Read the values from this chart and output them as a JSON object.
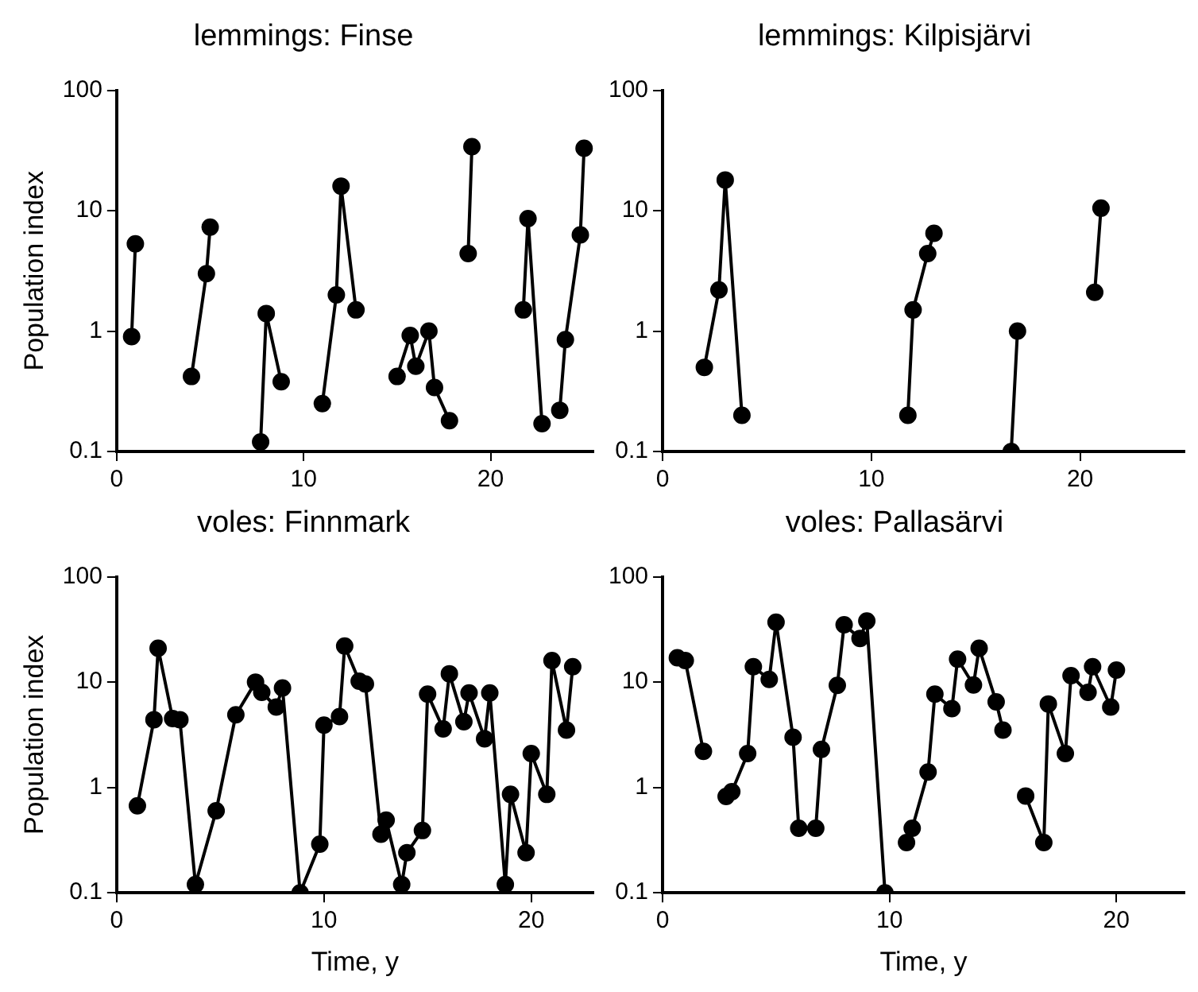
{
  "chart_data": [
    {
      "type": "line",
      "title": "lemmings: Finse",
      "ylabel": "Population index",
      "log": "y",
      "marker": "circle",
      "color": "#000000",
      "xlim": [
        0,
        25.5
      ],
      "xticks": [
        0,
        10,
        20
      ],
      "ylim": [
        0.1,
        100
      ],
      "yticks": [
        0.1,
        1,
        10,
        100
      ],
      "x": [
        0.8,
        1.0,
        1.5,
        4.0,
        4.8,
        5.0,
        5.5,
        7.7,
        8.0,
        8.8,
        8.9,
        11.0,
        11.75,
        12.0,
        12.8,
        12.95,
        15.0,
        15.7,
        16.0,
        16.7,
        17.0,
        17.8,
        18.0,
        18.8,
        19.0,
        19.6,
        21.75,
        22.0,
        22.75,
        23.2,
        23.7,
        24.0,
        24.8,
        25.0
      ],
      "values": [
        0.9,
        5.3,
        null,
        0.42,
        3.0,
        7.3,
        null,
        0.12,
        1.4,
        0.38,
        null,
        0.25,
        2.0,
        16,
        1.5,
        null,
        0.42,
        0.92,
        0.51,
        1.0,
        0.34,
        0.18,
        null,
        4.4,
        34,
        null,
        1.5,
        8.6,
        0.17,
        null,
        0.22,
        0.85,
        6.3,
        33
      ]
    },
    {
      "type": "line",
      "title": "lemmings: Kilpisjärvi",
      "log": "y",
      "marker": "circle",
      "color": "#000000",
      "xlim": [
        0,
        25
      ],
      "xticks": [
        0,
        10,
        20
      ],
      "ylim": [
        0.1,
        100
      ],
      "yticks": [
        0.1,
        1,
        10,
        100
      ],
      "x": [
        2.0,
        2.7,
        3.0,
        3.8,
        7.0,
        11.75,
        12.0,
        12.7,
        13.0,
        13.5,
        16.7,
        17.0,
        17.4,
        20.7,
        21.0
      ],
      "values": [
        0.5,
        2.2,
        18,
        0.2,
        null,
        0.2,
        1.5,
        4.4,
        6.5,
        null,
        0.1,
        1.0,
        null,
        2.1,
        10.5
      ]
    },
    {
      "type": "line",
      "title": "voles: Finnmark",
      "ylabel": "Population index",
      "xlabel": "Time, y",
      "log": "y",
      "marker": "circle",
      "color": "#000000",
      "xlim": [
        0,
        23
      ],
      "xticks": [
        0,
        10,
        20
      ],
      "ylim": [
        0.1,
        100
      ],
      "yticks": [
        0.1,
        1,
        10,
        100
      ],
      "x": [
        1.0,
        1.8,
        2.0,
        2.7,
        3.05,
        3.8,
        4.8,
        5.75,
        6.7,
        7.0,
        7.7,
        8.0,
        8.85,
        9.8,
        10.0,
        10.75,
        11.0,
        11.7,
        12.0,
        12.75,
        13.0,
        13.75,
        14.0,
        14.75,
        15.0,
        15.75,
        16.05,
        16.75,
        17.0,
        17.75,
        18.0,
        18.75,
        19.0,
        19.75,
        20.0,
        20.75,
        21.0,
        21.7,
        22.0
      ],
      "values": [
        0.67,
        4.4,
        21,
        4.5,
        4.4,
        0.12,
        0.6,
        4.9,
        10,
        8.0,
        5.8,
        8.8,
        0.1,
        0.29,
        3.9,
        4.7,
        22,
        10.2,
        9.6,
        0.36,
        0.49,
        0.12,
        0.24,
        0.39,
        7.7,
        3.6,
        12,
        4.2,
        7.9,
        2.9,
        7.9,
        0.12,
        0.86,
        0.24,
        2.1,
        0.86,
        16,
        3.5,
        14
      ]
    },
    {
      "type": "line",
      "title": "voles: Pallasärvi",
      "xlabel": "Time, y",
      "log": "y",
      "marker": "circle",
      "color": "#000000",
      "xlim": [
        0,
        23
      ],
      "xticks": [
        0,
        10,
        20
      ],
      "ylim": [
        0.1,
        100
      ],
      "yticks": [
        0.1,
        1,
        10,
        100
      ],
      "x": [
        0.65,
        1.0,
        1.8,
        2.1,
        2.8,
        3.05,
        3.75,
        4.0,
        4.7,
        5.0,
        5.75,
        6.0,
        6.75,
        7.0,
        7.7,
        8.0,
        8.7,
        9.0,
        9.8,
        10.3,
        10.75,
        11.0,
        11.7,
        12.0,
        12.75,
        13.0,
        13.7,
        13.95,
        14.7,
        15.0,
        15.5,
        16.0,
        16.8,
        17.0,
        17.75,
        18.0,
        18.75,
        18.95,
        19.75,
        20.0
      ],
      "values": [
        17,
        16,
        2.2,
        null,
        0.82,
        0.91,
        2.1,
        14,
        10.6,
        37,
        3.0,
        0.41,
        0.41,
        2.3,
        9.3,
        35,
        26,
        38,
        0.1,
        null,
        0.3,
        0.41,
        1.4,
        7.7,
        5.6,
        16.5,
        9.4,
        21,
        6.5,
        3.5,
        null,
        0.83,
        0.3,
        6.2,
        2.1,
        11.5,
        8.0,
        14,
        5.8,
        13
      ]
    }
  ]
}
